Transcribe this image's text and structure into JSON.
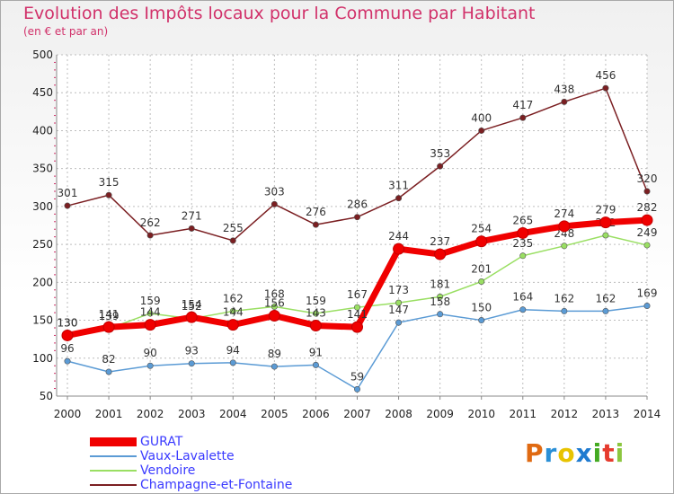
{
  "header": {
    "title": "Evolution des Impôts locaux pour la Commune par Habitant",
    "subtitle": "(en € et par an)"
  },
  "logo": {
    "text": "Proxiti",
    "colors": [
      "#e06a12",
      "#2a8fd6",
      "#e8c300",
      "#1f7bd0",
      "#44aa22",
      "#e63b2e",
      "#8cc63f"
    ]
  },
  "chart_data": {
    "type": "line",
    "title": "Evolution des Impôts locaux pour la Commune par Habitant",
    "subtitle": "(en € et par an)",
    "xlabel": "",
    "ylabel": "",
    "x": [
      "2000",
      "2001",
      "2002",
      "2003",
      "2004",
      "2005",
      "2006",
      "2007",
      "2008",
      "2009",
      "2010",
      "2011",
      "2012",
      "2013",
      "2014"
    ],
    "ylim": [
      50,
      500
    ],
    "yticks": [
      50,
      100,
      150,
      200,
      250,
      300,
      350,
      400,
      450,
      500
    ],
    "grid": "horizontal dashed",
    "legend_position": "bottom-left",
    "series": [
      {
        "name": "Champagne-et-Fontaine",
        "color": "#7b1f22",
        "values": [
          301,
          315,
          262,
          271,
          255,
          303,
          276,
          286,
          311,
          353,
          400,
          417,
          438,
          456,
          320
        ]
      },
      {
        "name": "Vendoire",
        "color": "#9adf63",
        "values": [
          130,
          139,
          159,
          152,
          162,
          168,
          159,
          167,
          173,
          181,
          201,
          235,
          248,
          262,
          249
        ]
      },
      {
        "name": "Vaux-Lavalette",
        "color": "#5b9bd5",
        "values": [
          96,
          82,
          90,
          93,
          94,
          89,
          91,
          59,
          147,
          158,
          150,
          164,
          162,
          162,
          169
        ]
      },
      {
        "name": "GURAT",
        "color": "#f00000",
        "values": [
          130,
          141,
          144,
          154,
          144,
          156,
          143,
          141,
          244,
          237,
          254,
          265,
          274,
          279,
          282
        ]
      }
    ],
    "data_labels": [
      {
        "series": "Champagne-et-Fontaine",
        "labels": [
          "301",
          "315",
          "262",
          "271",
          "255",
          "303",
          "276",
          "286",
          "311",
          "353",
          "400",
          "417",
          "438",
          "456",
          "320"
        ]
      },
      {
        "series": "Vendoire",
        "labels": [
          "130",
          "139",
          "159",
          "152",
          "162",
          "168",
          "159",
          "167",
          "173",
          "181",
          "201",
          "235",
          "248",
          "262",
          "249"
        ]
      },
      {
        "series": "Vaux-Lavalette",
        "labels": [
          "96",
          "82",
          "90",
          "93",
          "94",
          "89",
          "91",
          "59",
          "147",
          "158",
          "150",
          "164",
          "162",
          "162",
          "169"
        ]
      },
      {
        "series": "GURAT",
        "labels": [
          "130",
          "141",
          "144",
          "154",
          "144",
          "156",
          "143",
          "141",
          "244",
          "237",
          "254",
          "265",
          "274",
          "279",
          "282"
        ]
      }
    ]
  },
  "legend": {
    "items": [
      {
        "label": "GURAT",
        "color": "#f00000"
      },
      {
        "label": "Vaux-Lavalette",
        "color": "#5b9bd5"
      },
      {
        "label": "Vendoire",
        "color": "#9adf63"
      },
      {
        "label": "Champagne-et-Fontaine",
        "color": "#7b1f22"
      }
    ]
  }
}
